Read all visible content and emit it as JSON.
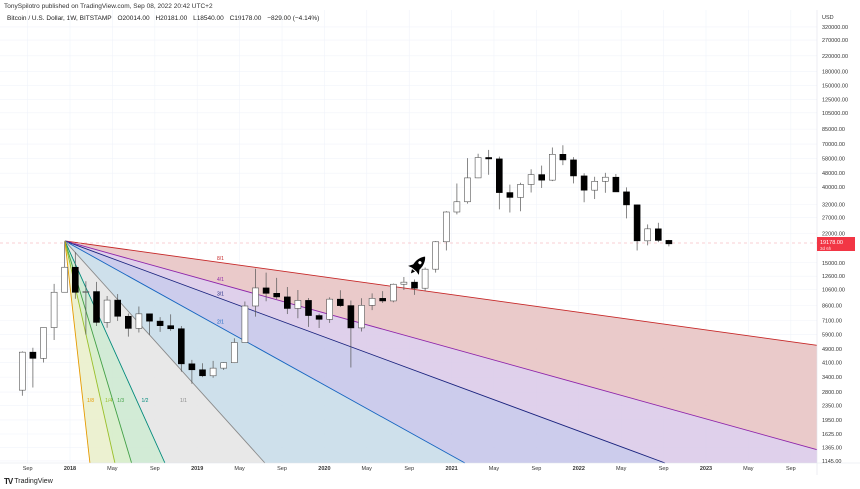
{
  "header": {
    "published": "TonySpilotro published on TradingView.com, Sep 08, 2022 20:42 UTC+2",
    "symbol": "Bitcoin / U.S. Dollar, 1W, BITSTAMP",
    "open": "O20014.00",
    "high": "H20181.00",
    "low": "L18540.00",
    "close": "C19178.00",
    "change": "−829.00 (−4.14%)"
  },
  "footer": {
    "brand": "TradingView"
  },
  "colors": {
    "up": "#ffffff",
    "down": "#000000",
    "wick": "#555555",
    "price_label": "#f23645"
  },
  "chart_data": {
    "type": "candlestick",
    "scale": "log",
    "currency_label": "USD",
    "current_price": {
      "label": "19178.00",
      "countdown": "3d 6h",
      "value": 19178
    },
    "yticks": [
      320000,
      270000,
      220000,
      180000,
      150000,
      125000,
      105000,
      85000,
      70000,
      58000,
      48000,
      40000,
      32000,
      27000,
      22000,
      15000,
      12600,
      10600,
      8600,
      7100,
      5900,
      4900,
      4100,
      3400,
      2800,
      2350,
      1950,
      1625,
      1365,
      1145
    ],
    "ytick_labels": [
      "320000.00",
      "270000.00",
      "220000.00",
      "180000.00",
      "150000.00",
      "125000.00",
      "105000.00",
      "85000.00",
      "70000.00",
      "58000.00",
      "48000.00",
      "40000.00",
      "32000.00",
      "27000.00",
      "22000.00",
      "15000.00",
      "12600.00",
      "10600.00",
      "8600.00",
      "7100.00",
      "5900.00",
      "4900.00",
      "4100.00",
      "3400.00",
      "2800.00",
      "2350.00",
      "1950.00",
      "1625.00",
      "1365.00",
      "1145.00"
    ],
    "xticks": [
      {
        "label": "Sep",
        "t": 2017.667
      },
      {
        "label": "2018",
        "t": 2018.0
      },
      {
        "label": "May",
        "t": 2018.333
      },
      {
        "label": "Sep",
        "t": 2018.667
      },
      {
        "label": "2019",
        "t": 2019.0
      },
      {
        "label": "May",
        "t": 2019.333
      },
      {
        "label": "Sep",
        "t": 2019.667
      },
      {
        "label": "2020",
        "t": 2020.0
      },
      {
        "label": "May",
        "t": 2020.333
      },
      {
        "label": "Sep",
        "t": 2020.667
      },
      {
        "label": "2021",
        "t": 2021.0
      },
      {
        "label": "May",
        "t": 2021.333
      },
      {
        "label": "Sep",
        "t": 2021.667
      },
      {
        "label": "2022",
        "t": 2022.0
      },
      {
        "label": "May",
        "t": 2022.333
      },
      {
        "label": "Sep",
        "t": 2022.667
      },
      {
        "label": "2023",
        "t": 2023.0
      },
      {
        "label": "May",
        "t": 2023.333
      },
      {
        "label": "Sep",
        "t": 2023.667
      }
    ],
    "ohlc_monthly_approx": [
      [
        "2017-08",
        2870,
        4750,
        2670,
        4700
      ],
      [
        "2017-09",
        4700,
        4980,
        2970,
        4340
      ],
      [
        "2017-10",
        4340,
        6470,
        4110,
        6470
      ],
      [
        "2017-11",
        6470,
        11400,
        5500,
        10230
      ],
      [
        "2017-12",
        10230,
        19800,
        10900,
        14150
      ],
      [
        "2018-01",
        14150,
        17200,
        9400,
        10220
      ],
      [
        "2018-02",
        10220,
        11800,
        5900,
        10320
      ],
      [
        "2018-03",
        10320,
        11700,
        6600,
        6920
      ],
      [
        "2018-04",
        6920,
        9750,
        6450,
        9240
      ],
      [
        "2018-05",
        9240,
        9990,
        7050,
        7490
      ],
      [
        "2018-06",
        7490,
        7760,
        5750,
        6400
      ],
      [
        "2018-07",
        6400,
        8500,
        6070,
        7730
      ],
      [
        "2018-08",
        7730,
        7760,
        5880,
        7030
      ],
      [
        "2018-09",
        7030,
        7410,
        6120,
        6630
      ],
      [
        "2018-10",
        6630,
        7680,
        6200,
        6370
      ],
      [
        "2018-11",
        6370,
        6600,
        3650,
        4040
      ],
      [
        "2018-12",
        4040,
        4250,
        3120,
        3740
      ],
      [
        "2019-01",
        3740,
        4070,
        3400,
        3460
      ],
      [
        "2019-02",
        3460,
        4200,
        3370,
        3820
      ],
      [
        "2019-03",
        3820,
        4120,
        3730,
        4100
      ],
      [
        "2019-04",
        4100,
        5630,
        4080,
        5330
      ],
      [
        "2019-05",
        5330,
        9070,
        5330,
        8560
      ],
      [
        "2019-06",
        8560,
        13880,
        7450,
        10820
      ],
      [
        "2019-07",
        10820,
        13200,
        9100,
        10090
      ],
      [
        "2019-08",
        10090,
        12330,
        9350,
        9630
      ],
      [
        "2019-09",
        9630,
        10950,
        7710,
        8290
      ],
      [
        "2019-10",
        8290,
        10540,
        7300,
        9200
      ],
      [
        "2019-11",
        9200,
        9500,
        6530,
        7560
      ],
      [
        "2019-12",
        7560,
        7750,
        6430,
        7200
      ],
      [
        "2020-01",
        7200,
        9580,
        6870,
        9350
      ],
      [
        "2020-02",
        9350,
        10500,
        8450,
        8600
      ],
      [
        "2020-03",
        8600,
        9190,
        3850,
        6440
      ],
      [
        "2020-04",
        6440,
        9470,
        6150,
        8630
      ],
      [
        "2020-05",
        8630,
        10080,
        8110,
        9450
      ],
      [
        "2020-06",
        9450,
        10380,
        8900,
        9140
      ],
      [
        "2020-07",
        9140,
        11450,
        8980,
        11350
      ],
      [
        "2020-08",
        11350,
        12470,
        10540,
        11660
      ],
      [
        "2020-09",
        11660,
        12070,
        9880,
        10780
      ],
      [
        "2020-10",
        10780,
        14100,
        10420,
        13800
      ],
      [
        "2020-11",
        13800,
        19860,
        13200,
        19700
      ],
      [
        "2020-12",
        19700,
        29300,
        17600,
        28990
      ],
      [
        "2021-01",
        28990,
        41950,
        28130,
        33110
      ],
      [
        "2021-02",
        33110,
        58350,
        32300,
        45140
      ],
      [
        "2021-03",
        45140,
        61790,
        45000,
        58800
      ],
      [
        "2021-04",
        58800,
        64900,
        47000,
        57750
      ],
      [
        "2021-05",
        57750,
        59500,
        30000,
        37300
      ],
      [
        "2021-06",
        37300,
        41330,
        28800,
        35040
      ],
      [
        "2021-07",
        35040,
        42400,
        29280,
        41460
      ],
      [
        "2021-08",
        41460,
        50500,
        37330,
        47100
      ],
      [
        "2021-09",
        47100,
        52950,
        39600,
        43830
      ],
      [
        "2021-10",
        43830,
        67000,
        43300,
        61300
      ],
      [
        "2021-11",
        61300,
        69000,
        53300,
        57000
      ],
      [
        "2021-12",
        57000,
        59100,
        42000,
        46300
      ],
      [
        "2022-01",
        46300,
        47900,
        32900,
        38480
      ],
      [
        "2022-02",
        38480,
        45800,
        34300,
        43180
      ],
      [
        "2022-03",
        43180,
        48200,
        37200,
        45530
      ],
      [
        "2022-04",
        45530,
        47450,
        37600,
        37640
      ],
      [
        "2022-05",
        37640,
        39900,
        26700,
        31800
      ],
      [
        "2022-06",
        31800,
        31900,
        17600,
        19940
      ],
      [
        "2022-07",
        19940,
        24670,
        18800,
        23300
      ],
      [
        "2022-08",
        23300,
        25200,
        19600,
        20050
      ],
      [
        "2022-09",
        20050,
        20200,
        18540,
        19178
      ]
    ],
    "gann_fan": {
      "origin": {
        "t": 2017.96,
        "price": 19900
      },
      "lines": [
        {
          "label": "8/1",
          "ratio": 0.125,
          "color": "#c62828",
          "fill": "#e8c4c4"
        },
        {
          "label": "4/1",
          "ratio": 0.25,
          "color": "#8e24aa",
          "fill": "#dccbe9"
        },
        {
          "label": "3/1",
          "ratio": 0.3333,
          "color": "#1a237e",
          "fill": "#c7c7ea"
        },
        {
          "label": "2/1",
          "ratio": 0.5,
          "color": "#1565c0",
          "fill": "#c9dde9"
        },
        {
          "label": "1/1",
          "ratio": 1,
          "color": "#8a8a8a",
          "fill": "#e6e6e6"
        },
        {
          "label": "1/2",
          "ratio": 2,
          "color": "#00897b",
          "fill": "#cde9d2"
        },
        {
          "label": "1/3",
          "ratio": 3,
          "color": "#43a047",
          "fill": "#d6edc9"
        },
        {
          "label": "1/4",
          "ratio": 4,
          "color": "#9abf2a",
          "fill": "#eaf0cc"
        },
        {
          "label": "1/8",
          "ratio": 8,
          "color": "#e69a00",
          "fill": "#efe0c9"
        }
      ]
    },
    "annotation_icon": "rocket-icon"
  }
}
